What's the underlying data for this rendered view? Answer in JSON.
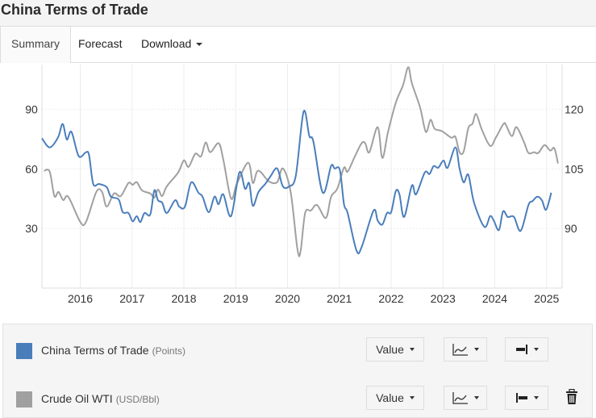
{
  "header": {
    "title": "China Terms of Trade"
  },
  "tabs": [
    {
      "label": "Summary",
      "active": true
    },
    {
      "label": "Forecast"
    },
    {
      "label": "Download",
      "has_dropdown": true
    }
  ],
  "colors": {
    "series1": "#4a7ebb",
    "series2": "#a0a0a0",
    "grid": "#ececec"
  },
  "legend": [
    {
      "name": "China Terms of Trade",
      "unit": "(Points)",
      "value_label": "Value",
      "chart_icon": "line-chart-icon",
      "axis_icon": "axis-right-icon"
    },
    {
      "name": "Crude Oil WTI",
      "unit": "(USD/Bbl)",
      "value_label": "Value",
      "chart_icon": "line-chart-icon",
      "axis_icon": "axis-left-icon",
      "delete_icon": "trash-icon"
    }
  ],
  "chart_data": {
    "type": "line",
    "title": "China Terms of Trade",
    "x_ticks": [
      "2016",
      "2017",
      "2018",
      "2019",
      "2020",
      "2021",
      "2022",
      "2023",
      "2024",
      "2025"
    ],
    "xlim": [
      2015.26,
      2025.3
    ],
    "left_axis": {
      "ticks": [
        "30",
        "60",
        "90"
      ],
      "tick_values": [
        30,
        60,
        90
      ],
      "ylim": [
        0,
        112.5
      ]
    },
    "right_axis": {
      "ticks": [
        "90",
        "105",
        "120"
      ],
      "tick_values": [
        90,
        105,
        120
      ],
      "ylim": [
        75,
        131.25
      ]
    },
    "grid": true,
    "series": [
      {
        "name": "China Terms of Trade",
        "axis": "right",
        "points": [
          [
            2015.26,
            112.7
          ],
          [
            2015.41,
            110.4
          ],
          [
            2015.57,
            112.9
          ],
          [
            2015.66,
            116.3
          ],
          [
            2015.74,
            112.4
          ],
          [
            2015.83,
            114.3
          ],
          [
            2015.97,
            108.2
          ],
          [
            2016.11,
            109.2
          ],
          [
            2016.17,
            108.4
          ],
          [
            2016.25,
            101.2
          ],
          [
            2016.36,
            101.2
          ],
          [
            2016.51,
            100.4
          ],
          [
            2016.59,
            98.0
          ],
          [
            2016.74,
            97.3
          ],
          [
            2016.82,
            94.1
          ],
          [
            2016.93,
            93.9
          ],
          [
            2017.01,
            91.8
          ],
          [
            2017.09,
            93.1
          ],
          [
            2017.16,
            91.6
          ],
          [
            2017.24,
            93.9
          ],
          [
            2017.35,
            93.5
          ],
          [
            2017.43,
            99.6
          ],
          [
            2017.5,
            97.1
          ],
          [
            2017.58,
            96.5
          ],
          [
            2017.67,
            93.9
          ],
          [
            2017.83,
            97.1
          ],
          [
            2017.91,
            95.5
          ],
          [
            2018.02,
            95.5
          ],
          [
            2018.14,
            101.6
          ],
          [
            2018.28,
            99.0
          ],
          [
            2018.36,
            98.0
          ],
          [
            2018.48,
            94.1
          ],
          [
            2018.59,
            98.0
          ],
          [
            2018.67,
            96.1
          ],
          [
            2018.76,
            98.6
          ],
          [
            2018.91,
            93.1
          ],
          [
            2019.07,
            104.1
          ],
          [
            2019.18,
            100.0
          ],
          [
            2019.26,
            101.4
          ],
          [
            2019.33,
            95.7
          ],
          [
            2019.44,
            99.2
          ],
          [
            2019.57,
            101.2
          ],
          [
            2019.67,
            103.1
          ],
          [
            2019.8,
            105.1
          ],
          [
            2019.91,
            100.6
          ],
          [
            2020.03,
            100.6
          ],
          [
            2020.16,
            103.3
          ],
          [
            2020.31,
            119.4
          ],
          [
            2020.42,
            113.3
          ],
          [
            2020.5,
            111.8
          ],
          [
            2020.68,
            99.0
          ],
          [
            2020.84,
            105.7
          ],
          [
            2020.91,
            105.1
          ],
          [
            2021.01,
            104.7
          ],
          [
            2021.09,
            96.1
          ],
          [
            2021.16,
            93.9
          ],
          [
            2021.33,
            84.5
          ],
          [
            2021.43,
            85.3
          ],
          [
            2021.66,
            94.5
          ],
          [
            2021.74,
            92.0
          ],
          [
            2021.83,
            91.0
          ],
          [
            2021.92,
            93.9
          ],
          [
            2022.0,
            94.1
          ],
          [
            2022.09,
            99.4
          ],
          [
            2022.16,
            98.6
          ],
          [
            2022.25,
            92.9
          ],
          [
            2022.4,
            100.8
          ],
          [
            2022.48,
            98.6
          ],
          [
            2022.65,
            104.1
          ],
          [
            2022.74,
            103.7
          ],
          [
            2022.82,
            105.7
          ],
          [
            2022.91,
            105.3
          ],
          [
            2023.01,
            107.1
          ],
          [
            2023.09,
            105.3
          ],
          [
            2023.24,
            110.4
          ],
          [
            2023.32,
            105.1
          ],
          [
            2023.4,
            101.6
          ],
          [
            2023.49,
            103.5
          ],
          [
            2023.6,
            96.5
          ],
          [
            2023.8,
            90.4
          ],
          [
            2023.91,
            93.1
          ],
          [
            2023.98,
            92.0
          ],
          [
            2024.08,
            89.6
          ],
          [
            2024.16,
            94.3
          ],
          [
            2024.25,
            92.9
          ],
          [
            2024.37,
            92.9
          ],
          [
            2024.5,
            89.4
          ],
          [
            2024.65,
            95.9
          ],
          [
            2024.73,
            96.9
          ],
          [
            2024.82,
            98.0
          ],
          [
            2024.91,
            97.1
          ],
          [
            2024.99,
            94.7
          ],
          [
            2025.09,
            99.0
          ]
        ]
      },
      {
        "name": "Crude Oil WTI",
        "axis": "left",
        "points": [
          [
            2015.3,
            59.0
          ],
          [
            2015.41,
            58.6
          ],
          [
            2015.5,
            46.3
          ],
          [
            2015.58,
            48.4
          ],
          [
            2015.67,
            44.3
          ],
          [
            2015.77,
            45.9
          ],
          [
            2016.0,
            33.3
          ],
          [
            2016.11,
            33.3
          ],
          [
            2016.31,
            48.4
          ],
          [
            2016.42,
            48.4
          ],
          [
            2016.51,
            41.0
          ],
          [
            2016.65,
            47.6
          ],
          [
            2016.78,
            46.3
          ],
          [
            2016.93,
            52.9
          ],
          [
            2017.01,
            52.0
          ],
          [
            2017.09,
            53.3
          ],
          [
            2017.19,
            49.2
          ],
          [
            2017.35,
            47.6
          ],
          [
            2017.43,
            45.5
          ],
          [
            2017.5,
            49.6
          ],
          [
            2017.58,
            46.3
          ],
          [
            2017.67,
            51.2
          ],
          [
            2017.89,
            58.2
          ],
          [
            2018.0,
            64.3
          ],
          [
            2018.09,
            61.0
          ],
          [
            2018.22,
            67.6
          ],
          [
            2018.33,
            66.3
          ],
          [
            2018.42,
            73.3
          ],
          [
            2018.51,
            68.4
          ],
          [
            2018.67,
            72.9
          ],
          [
            2018.76,
            64.7
          ],
          [
            2018.91,
            45.1
          ],
          [
            2019.02,
            52.4
          ],
          [
            2019.24,
            63.1
          ],
          [
            2019.33,
            52.9
          ],
          [
            2019.41,
            58.6
          ],
          [
            2019.49,
            58.2
          ],
          [
            2019.64,
            53.7
          ],
          [
            2019.8,
            53.3
          ],
          [
            2019.91,
            60.2
          ],
          [
            2020.06,
            48.4
          ],
          [
            2020.19,
            19.8
          ],
          [
            2020.25,
            18.2
          ],
          [
            2020.34,
            37.8
          ],
          [
            2020.45,
            39.0
          ],
          [
            2020.57,
            41.8
          ],
          [
            2020.74,
            35.3
          ],
          [
            2020.84,
            45.9
          ],
          [
            2020.96,
            50.0
          ],
          [
            2021.09,
            60.6
          ],
          [
            2021.16,
            58.6
          ],
          [
            2021.3,
            66.3
          ],
          [
            2021.43,
            72.9
          ],
          [
            2021.5,
            72.9
          ],
          [
            2021.58,
            68.4
          ],
          [
            2021.74,
            81.0
          ],
          [
            2021.83,
            65.5
          ],
          [
            2021.94,
            78.6
          ],
          [
            2022.09,
            93.3
          ],
          [
            2022.23,
            102.2
          ],
          [
            2022.33,
            111.2
          ],
          [
            2022.4,
            103.1
          ],
          [
            2022.56,
            90.8
          ],
          [
            2022.67,
            78.6
          ],
          [
            2022.76,
            84.7
          ],
          [
            2022.84,
            80.2
          ],
          [
            2022.98,
            79.0
          ],
          [
            2023.16,
            75.7
          ],
          [
            2023.24,
            76.1
          ],
          [
            2023.32,
            68.4
          ],
          [
            2023.4,
            68.8
          ],
          [
            2023.49,
            80.6
          ],
          [
            2023.57,
            82.7
          ],
          [
            2023.64,
            87.6
          ],
          [
            2023.75,
            79.8
          ],
          [
            2023.91,
            71.6
          ],
          [
            2024.02,
            75.7
          ],
          [
            2024.17,
            82.7
          ],
          [
            2024.22,
            81.8
          ],
          [
            2024.33,
            76.5
          ],
          [
            2024.42,
            81.0
          ],
          [
            2024.56,
            73.7
          ],
          [
            2024.65,
            68.0
          ],
          [
            2024.76,
            68.4
          ],
          [
            2024.84,
            68.0
          ],
          [
            2024.96,
            72.0
          ],
          [
            2025.07,
            69.2
          ],
          [
            2025.15,
            70.4
          ],
          [
            2025.22,
            62.7
          ]
        ]
      }
    ]
  }
}
